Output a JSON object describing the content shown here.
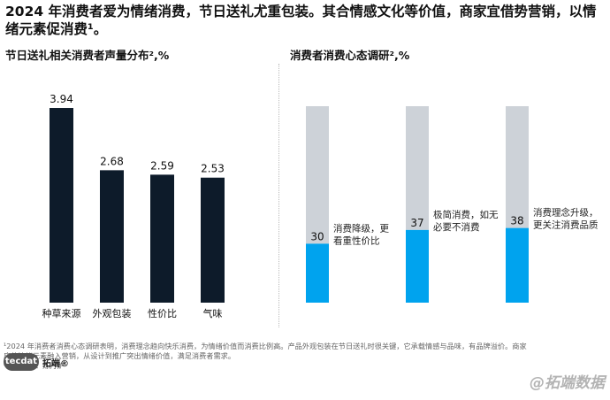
{
  "headline": "2024 年消费者爱为情绪消费，节日送礼尤重包装。其合情感文化等价值，商家宜借势营销，以情绪元素促消费¹。",
  "panels": {
    "left_title": "节日送礼相关消费者声量分布²,%",
    "right_title": "消费者消费心态调研²,%"
  },
  "chart_data": [
    {
      "type": "bar",
      "title": "节日送礼相关消费者声量分布²,%",
      "categories": [
        "种草来源",
        "外观包装",
        "性价比",
        "气味"
      ],
      "values": [
        3.94,
        2.68,
        2.59,
        2.53
      ],
      "value_labels": [
        "3.94",
        "2.68",
        "2.59",
        "2.53"
      ],
      "ylim": [
        0,
        4.8
      ],
      "grid": false,
      "colors": {
        "bar": "#0d1b2a"
      }
    },
    {
      "type": "bar",
      "title": "消费者消费心态调研²,%",
      "stacked": true,
      "categories": [
        "消费降级，更看重性价比",
        "极简消费，如无必要不消费",
        "消费理念升级，更关注消费品质"
      ],
      "values": [
        30,
        37,
        38
      ],
      "value_labels": [
        "30",
        "37",
        "38"
      ],
      "annotations": [
        [
          "消费降级，更",
          "看重性价比"
        ],
        [
          "极简消费，如无",
          "必要不消费"
        ],
        [
          "消费理念升级，",
          "更关注消费品质"
        ]
      ],
      "ylim": [
        0,
        100
      ],
      "grid": false,
      "colors": {
        "value": "#00a3ee",
        "remainder": "#cdd2d8"
      }
    }
  ],
  "footnotes": [
    "¹2024 年消费者消费心态调研表明，消费理念趋向快乐消费，为情绪价值而消费比例高。产品外观包装在节日送礼时很关键，它承载情感与品味，有品牌溢价。商家",
    "应将情绪元素融入营销，从设计到推广突出情绪价值，满足消费者需求。",
    "²数据来源：炼丹炉"
  ],
  "logo": {
    "mark": "tecdat",
    "text": "拓端®"
  },
  "watermark": "@拓端数据"
}
